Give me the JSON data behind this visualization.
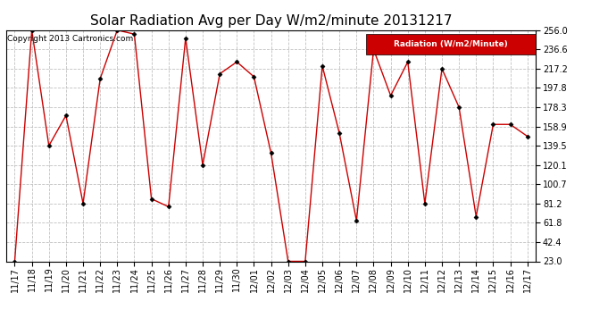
{
  "title": "Solar Radiation Avg per Day W/m2/minute 20131217",
  "copyright": "Copyright 2013 Cartronics.com",
  "legend_label": "Radiation (W/m2/Minute)",
  "dates": [
    "11/17",
    "11/18",
    "11/19",
    "11/20",
    "11/21",
    "11/22",
    "11/23",
    "11/24",
    "11/25",
    "11/26",
    "11/27",
    "11/28",
    "11/29",
    "11/30",
    "12/01",
    "12/02",
    "12/03",
    "12/04",
    "12/05",
    "12/06",
    "12/07",
    "12/08",
    "12/09",
    "12/10",
    "12/11",
    "12/12",
    "12/13",
    "12/14",
    "12/15",
    "12/16",
    "12/17"
  ],
  "values": [
    23.0,
    256.0,
    139.5,
    170.0,
    81.2,
    207.0,
    256.0,
    252.0,
    86.0,
    78.0,
    248.0,
    120.1,
    212.0,
    224.0,
    209.0,
    132.0,
    23.0,
    23.0,
    220.0,
    152.0,
    64.0,
    236.6,
    190.0,
    224.0,
    81.2,
    217.2,
    178.3,
    68.0,
    161.0,
    161.0,
    149.0
  ],
  "ymin": 23.0,
  "ymax": 256.0,
  "yticks": [
    23.0,
    42.4,
    61.8,
    81.2,
    100.7,
    120.1,
    139.5,
    158.9,
    178.3,
    197.8,
    217.2,
    236.6,
    256.0
  ],
  "line_color": "#cc0000",
  "marker_color": "#000000",
  "bg_color": "#ffffff",
  "grid_color": "#c0c0c0",
  "legend_bg": "#cc0000",
  "legend_text_color": "#ffffff",
  "title_fontsize": 11,
  "copyright_fontsize": 6.5,
  "tick_fontsize": 7,
  "legend_fontsize": 6.5
}
